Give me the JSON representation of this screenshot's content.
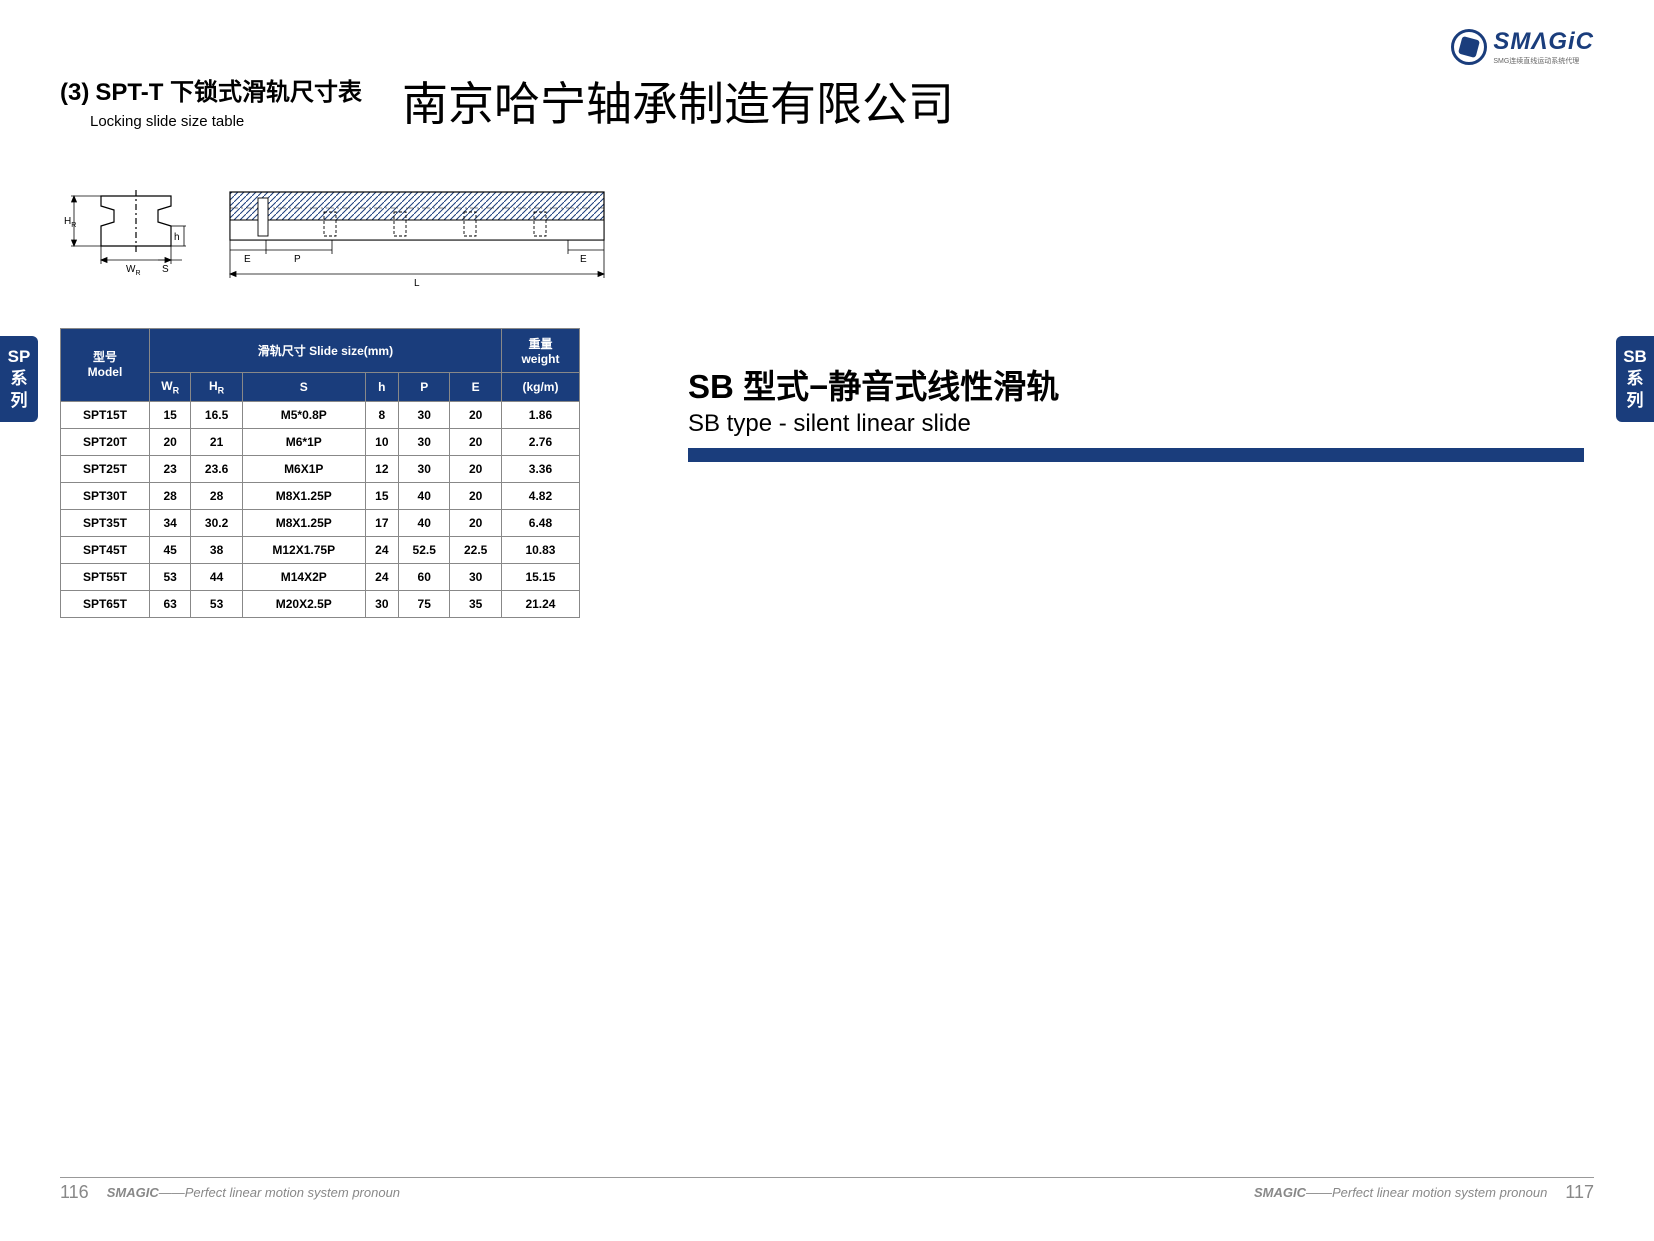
{
  "logo": {
    "main": "SMΛGiC",
    "sub": "SMG连续直线运动系统代理"
  },
  "header": {
    "section_num": "(3)",
    "title_zh": "SPT-T 下锁式滑轨尺寸表",
    "title_en": "Locking slide size table",
    "company": "南京哈宁轴承制造有限公司"
  },
  "diagram": {
    "labels_cross": {
      "HR": "H",
      "HR_sub": "R",
      "WR": "W",
      "WR_sub": "R",
      "h": "h",
      "S": "S"
    },
    "labels_long": {
      "E": "E",
      "P": "P",
      "L": "L",
      "E2": "E"
    }
  },
  "table": {
    "header_group_slide": "滑轨尺寸 Slide size(mm)",
    "header_group_weight_zh": "重量",
    "header_group_weight_en": "weight",
    "header_model_zh": "型号",
    "header_model_en": "Model",
    "cols": [
      {
        "label": "W",
        "sub": "R"
      },
      {
        "label": "H",
        "sub": "R"
      },
      {
        "label": "S",
        "sub": ""
      },
      {
        "label": "h",
        "sub": ""
      },
      {
        "label": "P",
        "sub": ""
      },
      {
        "label": "E",
        "sub": ""
      },
      {
        "label": "(kg/m)",
        "sub": ""
      }
    ],
    "rows": [
      {
        "model": "SPT15T",
        "c": [
          "15",
          "16.5",
          "M5*0.8P",
          "8",
          "30",
          "20",
          "1.86"
        ]
      },
      {
        "model": "SPT20T",
        "c": [
          "20",
          "21",
          "M6*1P",
          "10",
          "30",
          "20",
          "2.76"
        ]
      },
      {
        "model": "SPT25T",
        "c": [
          "23",
          "23.6",
          "M6X1P",
          "12",
          "30",
          "20",
          "3.36"
        ]
      },
      {
        "model": "SPT30T",
        "c": [
          "28",
          "28",
          "M8X1.25P",
          "15",
          "40",
          "20",
          "4.82"
        ]
      },
      {
        "model": "SPT35T",
        "c": [
          "34",
          "30.2",
          "M8X1.25P",
          "17",
          "40",
          "20",
          "6.48"
        ]
      },
      {
        "model": "SPT45T",
        "c": [
          "45",
          "38",
          "M12X1.75P",
          "24",
          "52.5",
          "22.5",
          "10.83"
        ]
      },
      {
        "model": "SPT55T",
        "c": [
          "53",
          "44",
          "M14X2P",
          "24",
          "60",
          "30",
          "15.15"
        ]
      },
      {
        "model": "SPT65T",
        "c": [
          "63",
          "53",
          "M20X2.5P",
          "30",
          "75",
          "35",
          "21.24"
        ]
      }
    ]
  },
  "side_left": "SP\n系\n列",
  "side_right": "SB\n系\n列",
  "right_title": {
    "main": "SB 型式−静音式线性滑轨",
    "sub": "SB type - silent linear slide"
  },
  "footer": {
    "tagline_brand": "SMAGIC",
    "tagline_rest": "——Perfect linear motion system pronoun",
    "page_left": "116",
    "page_right": "117"
  },
  "colors": {
    "primary": "#1a3d7c",
    "text": "#000000",
    "border": "#888888",
    "hatch": "#1a3d7c"
  }
}
